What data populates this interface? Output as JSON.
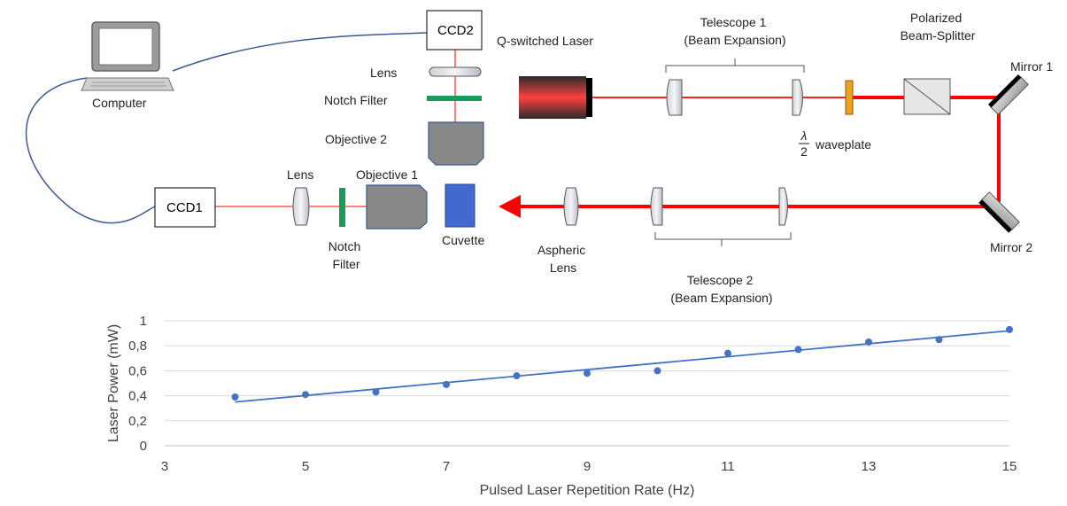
{
  "diagram": {
    "components": {
      "ccd2": "CCD2",
      "ccd1": "CCD1",
      "computer": "Computer",
      "lens_top": "Lens",
      "notch_top": "Notch Filter",
      "objective2": "Objective 2",
      "laser": "Q-switched Laser",
      "telescope1": [
        "Telescope 1",
        "(Beam Expansion)"
      ],
      "pbs": [
        "Polarized",
        "Beam-Splitter"
      ],
      "mirror1": "Mirror 1",
      "mirror2": "Mirror 2",
      "waveplate_fraction": [
        "λ",
        "2"
      ],
      "waveplate": "waveplate",
      "lens_left": "Lens",
      "objective1": "Objective 1",
      "notch_left": [
        "Notch",
        "Filter"
      ],
      "cuvette": "Cuvette",
      "aspheric": [
        "Aspheric",
        "Lens"
      ],
      "telescope2": [
        "Telescope 2",
        "(Beam Expansion)"
      ]
    },
    "colors": {
      "beam": "#ff0000",
      "cable": "#3b5a8f",
      "notch_filter": "#1a9a5a",
      "cuvette": "#4169cf",
      "waveplate": "#f0a020",
      "objective": "#888888"
    }
  },
  "chart_data": {
    "type": "scatter",
    "xlabel": "Pulsed Laser Repetition Rate (Hz)",
    "ylabel": "Laser Power (mW)",
    "xlim": [
      3,
      15
    ],
    "ylim": [
      0,
      1
    ],
    "x_ticks": [
      "3",
      "5",
      "7",
      "9",
      "11",
      "13",
      "15"
    ],
    "y_ticks": [
      "0",
      "0,2",
      "0,4",
      "0,6",
      "0,8",
      "1"
    ],
    "grid": "horizontal",
    "series": [
      {
        "x": [
          4,
          5,
          6,
          7,
          8,
          9,
          10,
          11,
          12,
          13,
          14,
          15
        ],
        "y": [
          0.39,
          0.41,
          0.43,
          0.49,
          0.56,
          0.58,
          0.6,
          0.74,
          0.77,
          0.83,
          0.85,
          0.93
        ],
        "color": "#4472c4"
      }
    ],
    "trendline": {
      "x": [
        4,
        15
      ],
      "y": [
        0.35,
        0.92
      ],
      "color": "#4472c4"
    }
  }
}
